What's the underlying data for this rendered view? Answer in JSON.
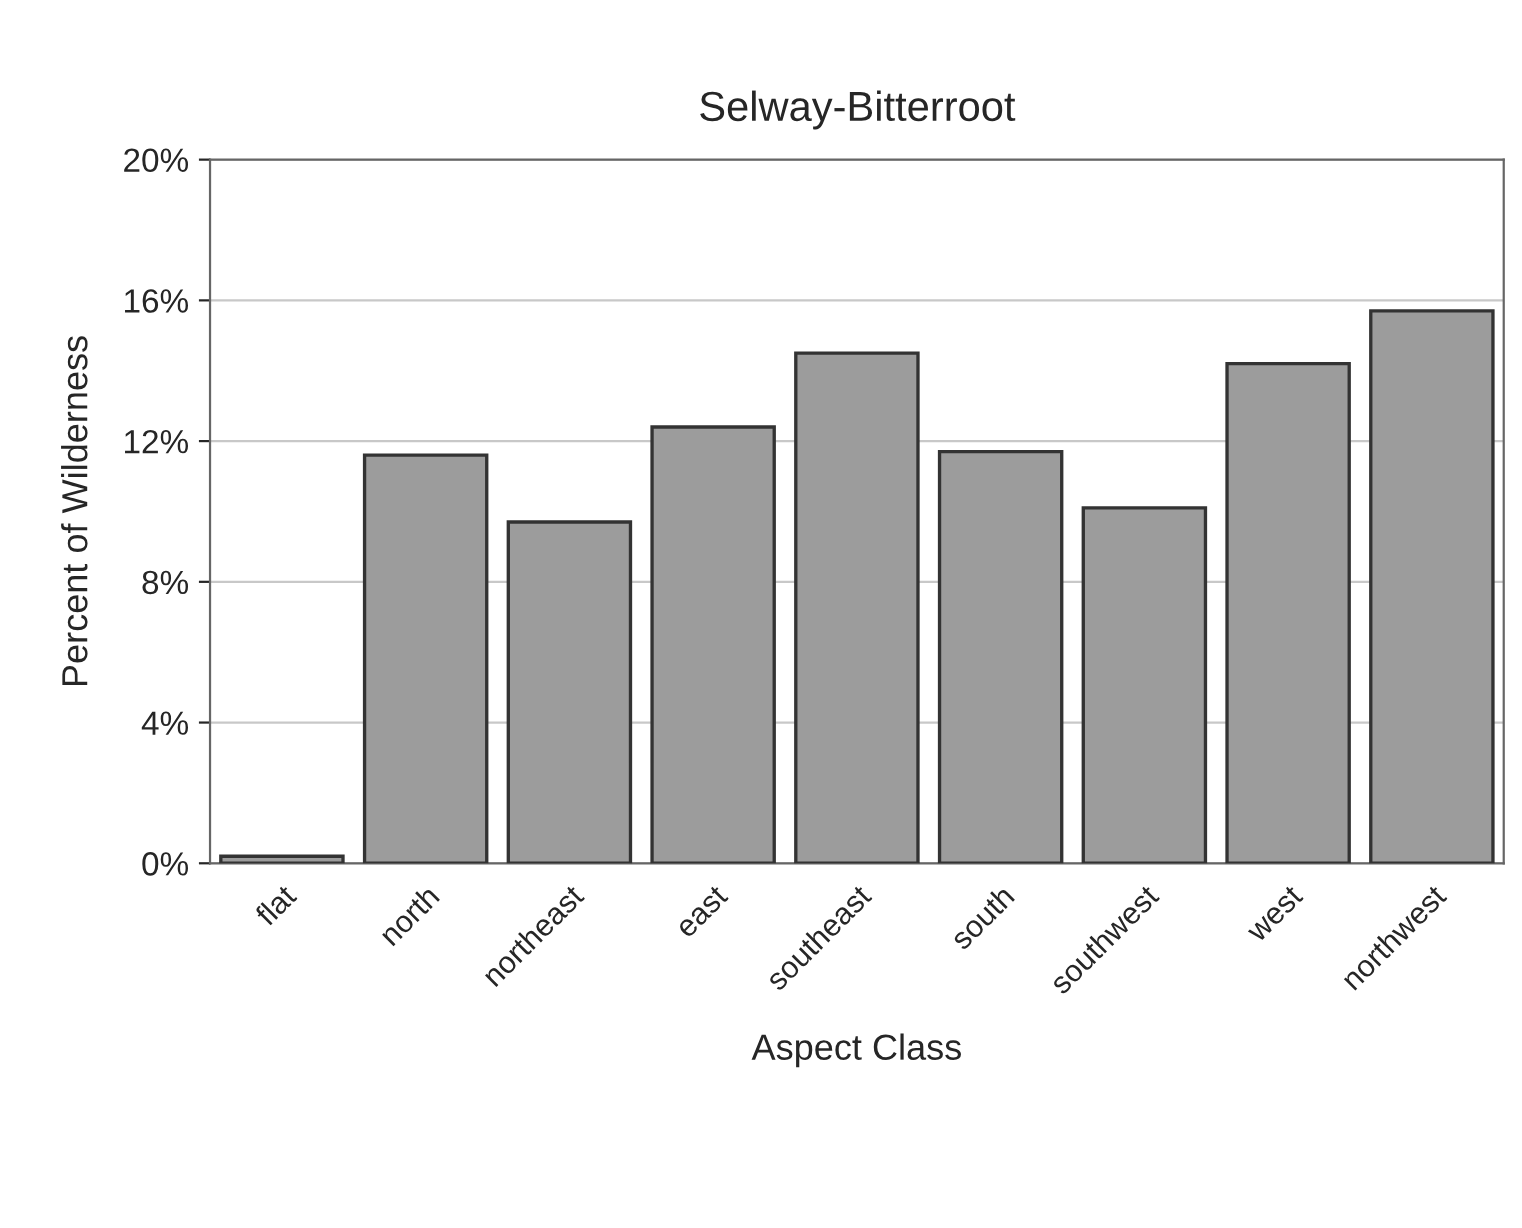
{
  "chart_data": {
    "type": "bar",
    "title": "Selway-Bitterroot",
    "xlabel": "Aspect Class",
    "ylabel": "Percent of Wilderness",
    "categories": [
      "flat",
      "north",
      "northeast",
      "east",
      "southeast",
      "south",
      "southwest",
      "west",
      "northwest"
    ],
    "values": [
      0.2,
      11.6,
      9.7,
      12.4,
      14.5,
      11.7,
      10.1,
      14.2,
      15.7
    ],
    "color": "#9c9c9c",
    "ylim": [
      0,
      20
    ],
    "yticks": [
      {
        "value": 0,
        "label": "0%"
      },
      {
        "value": 4,
        "label": "4%"
      },
      {
        "value": 8,
        "label": "8%"
      },
      {
        "value": 12,
        "label": "12%"
      },
      {
        "value": 16,
        "label": "16%"
      },
      {
        "value": 20,
        "label": "20%"
      }
    ],
    "grid": "y"
  }
}
